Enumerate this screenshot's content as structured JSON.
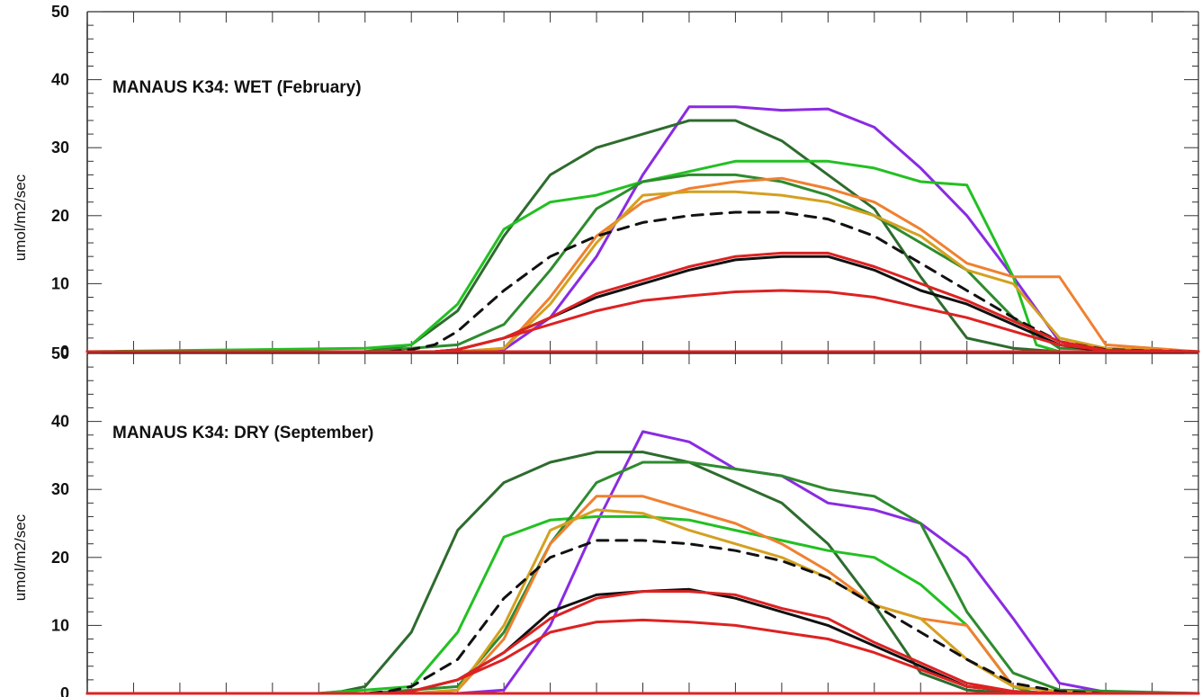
{
  "chart_data": [
    {
      "type": "line",
      "title": "MANAUS K34: WET (February)",
      "ylabel": "umol/m2/sec",
      "xlabel": "",
      "ylim": [
        0,
        50
      ],
      "yticks": [
        0,
        10,
        20,
        30,
        40,
        50
      ],
      "xlim": [
        0,
        24
      ],
      "series": [
        {
          "color": "#8a2be2",
          "dash": false,
          "x": [
            0,
            7,
            8,
            9,
            10,
            11,
            12,
            13,
            14,
            15,
            16,
            17,
            18,
            19,
            20,
            21,
            22,
            23,
            24
          ],
          "y": [
            0,
            0,
            0,
            0.3,
            5,
            14,
            26,
            36,
            36,
            35.5,
            35.7,
            33,
            27,
            20,
            11,
            1.5,
            0,
            0,
            0
          ]
        },
        {
          "color": "#2e6b2e",
          "dash": false,
          "x": [
            0,
            6,
            6.5,
            7,
            8,
            9,
            10,
            11,
            12,
            13,
            14,
            15,
            16,
            17,
            18,
            19,
            20,
            21,
            22,
            23,
            24
          ],
          "y": [
            0,
            0,
            0.5,
            1,
            6,
            17,
            26,
            30,
            32,
            34,
            34,
            31,
            26,
            21,
            11,
            2,
            0.5,
            0,
            0,
            0,
            0
          ]
        },
        {
          "color": "#22c022",
          "dash": false,
          "x": [
            0,
            6,
            7,
            8,
            9,
            10,
            11,
            12,
            13,
            14,
            15,
            16,
            17,
            18,
            19,
            20,
            20.5,
            21,
            24
          ],
          "y": [
            0,
            0.5,
            1,
            7,
            18,
            22,
            23,
            25,
            26.5,
            28,
            28,
            28,
            27,
            25,
            24.5,
            11,
            1,
            0,
            0
          ]
        },
        {
          "color": "#2e8b2e",
          "dash": false,
          "x": [
            0,
            6,
            7,
            8,
            9,
            10,
            11,
            12,
            13,
            14,
            15,
            16,
            17,
            18,
            19,
            20,
            21,
            24
          ],
          "y": [
            0,
            0,
            0.5,
            1,
            4,
            12,
            21,
            25,
            26,
            26,
            25,
            23,
            20,
            16,
            12,
            5,
            0.5,
            0
          ]
        },
        {
          "color": "#f08030",
          "dash": false,
          "x": [
            0,
            7,
            8,
            9,
            10,
            11,
            12,
            13,
            14,
            15,
            16,
            17,
            18,
            19,
            20,
            21,
            22,
            24
          ],
          "y": [
            0,
            0,
            0,
            0.5,
            8,
            17,
            22,
            24,
            25,
            25.5,
            24,
            22,
            18,
            13,
            11,
            11,
            1,
            0
          ]
        },
        {
          "color": "#d4a020",
          "dash": false,
          "x": [
            0,
            7,
            8,
            9,
            10,
            11,
            12,
            13,
            14,
            15,
            16,
            17,
            18,
            19,
            20,
            21,
            22,
            24
          ],
          "y": [
            0,
            0,
            0,
            0.5,
            7,
            16,
            23,
            23.5,
            23.5,
            23,
            22,
            20,
            17,
            12,
            10,
            2,
            0.5,
            0
          ]
        },
        {
          "color": "#111111",
          "dash": true,
          "x": [
            0,
            6.5,
            7,
            7.5,
            8,
            9,
            10,
            11,
            12,
            13,
            14,
            15,
            16,
            17,
            18,
            19,
            20,
            21,
            22,
            24
          ],
          "y": [
            0,
            0,
            0.3,
            1,
            3,
            9,
            14,
            17,
            19,
            20,
            20.5,
            20.5,
            19.5,
            17,
            13,
            9,
            5,
            1.5,
            0.3,
            0
          ]
        },
        {
          "color": "#111111",
          "dash": false,
          "x": [
            0,
            7,
            7.5,
            8,
            9,
            10,
            11,
            12,
            13,
            14,
            15,
            16,
            17,
            18,
            19,
            20,
            21,
            22,
            24
          ],
          "y": [
            0,
            0,
            0,
            0.3,
            2,
            5,
            8,
            10,
            12,
            13.5,
            14,
            14,
            12,
            9,
            7,
            4,
            1,
            0,
            0
          ]
        },
        {
          "color": "#dd2222",
          "dash": false,
          "x": [
            0,
            7,
            7.5,
            8,
            9,
            10,
            11,
            12,
            13,
            14,
            15,
            16,
            17,
            18,
            19,
            20,
            21,
            22,
            24
          ],
          "y": [
            0,
            0,
            0,
            0.3,
            2,
            5,
            8.5,
            10.5,
            12.5,
            14,
            14.5,
            14.5,
            12.5,
            10,
            7.5,
            4.5,
            1.5,
            0.2,
            0
          ]
        },
        {
          "color": "#dd2222",
          "dash": false,
          "x": [
            0,
            7,
            7.5,
            8,
            9,
            10,
            11,
            12,
            13,
            14,
            15,
            16,
            17,
            18,
            19,
            20,
            21,
            22,
            24
          ],
          "y": [
            0,
            0,
            0,
            0.3,
            2,
            4,
            6,
            7.5,
            8.2,
            8.8,
            9,
            8.8,
            8,
            6.5,
            5,
            3,
            1,
            0.2,
            0
          ]
        },
        {
          "color": "#dd2222",
          "dash": false,
          "x": [
            0,
            24
          ],
          "y": [
            0,
            0
          ]
        }
      ]
    },
    {
      "type": "line",
      "title": "MANAUS K34: DRY (September)",
      "ylabel": "umol/m2/sec",
      "xlabel": "",
      "ylim": [
        0,
        50
      ],
      "yticks": [
        0,
        10,
        20,
        30,
        40,
        50
      ],
      "xlim": [
        0,
        24
      ],
      "series": [
        {
          "color": "#8a2be2",
          "dash": false,
          "x": [
            0,
            7,
            8,
            9,
            10,
            11,
            12,
            13,
            14,
            15,
            16,
            17,
            18,
            19,
            20,
            21,
            22,
            24
          ],
          "y": [
            0,
            0,
            0,
            0.5,
            10,
            25,
            38.5,
            37,
            33,
            32,
            28,
            27,
            25,
            20,
            11,
            1.5,
            0.2,
            0
          ]
        },
        {
          "color": "#2e6b2e",
          "dash": false,
          "x": [
            0,
            5,
            5.5,
            6,
            7,
            8,
            9,
            10,
            11,
            12,
            13,
            14,
            15,
            16,
            17,
            18,
            19,
            20,
            21,
            24
          ],
          "y": [
            0,
            0,
            0.3,
            1,
            9,
            24,
            31,
            34,
            35.5,
            35.5,
            34,
            31,
            28,
            22,
            13,
            3,
            0.5,
            0,
            0,
            0
          ]
        },
        {
          "color": "#22c022",
          "dash": false,
          "x": [
            0,
            5,
            6,
            7,
            8,
            9,
            10,
            11,
            12,
            13,
            14,
            15,
            16,
            17,
            18,
            19,
            20,
            20.5,
            21,
            24
          ],
          "y": [
            0,
            0,
            0.5,
            1,
            9,
            23,
            25.5,
            26,
            26,
            25.5,
            24,
            22.5,
            21,
            20,
            16,
            10,
            1,
            0,
            0,
            0
          ]
        },
        {
          "color": "#2e8b2e",
          "dash": false,
          "x": [
            0,
            6,
            7,
            8,
            9,
            10,
            11,
            12,
            13,
            14,
            15,
            16,
            17,
            18,
            19,
            20,
            21,
            24
          ],
          "y": [
            0,
            0,
            0.5,
            1,
            9,
            22,
            31,
            34,
            34,
            33,
            32,
            30,
            29,
            25,
            12,
            3,
            0.5,
            0
          ]
        },
        {
          "color": "#f08030",
          "dash": false,
          "x": [
            0,
            6,
            7,
            8,
            9,
            10,
            11,
            12,
            13,
            14,
            15,
            16,
            17,
            18,
            19,
            20,
            21,
            22,
            24
          ],
          "y": [
            0,
            0,
            0,
            0.5,
            8,
            22,
            29,
            29,
            27,
            25,
            22,
            18,
            13,
            11,
            10,
            1,
            0.3,
            0,
            0
          ]
        },
        {
          "color": "#d4a020",
          "dash": false,
          "x": [
            0,
            6,
            7,
            8,
            9,
            10,
            11,
            12,
            13,
            14,
            15,
            16,
            17,
            18,
            19,
            20,
            21,
            22,
            24
          ],
          "y": [
            0,
            0,
            0,
            0.5,
            10,
            24,
            27,
            26.5,
            24,
            22,
            20,
            17,
            13,
            11,
            5,
            1,
            0.3,
            0,
            0
          ]
        },
        {
          "color": "#111111",
          "dash": true,
          "x": [
            0,
            6,
            6.5,
            7,
            8,
            9,
            10,
            11,
            12,
            13,
            14,
            15,
            16,
            17,
            18,
            19,
            20,
            21,
            22,
            24
          ],
          "y": [
            0,
            0,
            0.3,
            1,
            5,
            14,
            20,
            22.5,
            22.5,
            22,
            21,
            19.5,
            17,
            13,
            9,
            5,
            1.5,
            0.3,
            0,
            0
          ]
        },
        {
          "color": "#111111",
          "dash": false,
          "x": [
            0,
            6.5,
            7,
            8,
            9,
            10,
            11,
            12,
            13,
            14,
            15,
            16,
            17,
            18,
            19,
            20,
            21,
            24
          ],
          "y": [
            0,
            0,
            0.3,
            2,
            6,
            12,
            14.5,
            15,
            15.3,
            14,
            12,
            10,
            7,
            4,
            1,
            0.3,
            0,
            0
          ]
        },
        {
          "color": "#dd2222",
          "dash": false,
          "x": [
            0,
            6.5,
            7,
            8,
            9,
            10,
            11,
            12,
            13,
            14,
            15,
            16,
            17,
            18,
            19,
            20,
            21,
            24
          ],
          "y": [
            0,
            0,
            0.3,
            2,
            6,
            11,
            14,
            15,
            15,
            14.5,
            12.5,
            11,
            7.5,
            4.5,
            1.5,
            0.3,
            0,
            0
          ]
        },
        {
          "color": "#dd2222",
          "dash": false,
          "x": [
            0,
            6.5,
            7,
            8,
            9,
            10,
            11,
            12,
            13,
            14,
            15,
            16,
            17,
            18,
            19,
            20,
            21,
            24
          ],
          "y": [
            0,
            0,
            0.3,
            2,
            5,
            9,
            10.5,
            10.8,
            10.5,
            10,
            9,
            8,
            6,
            3.5,
            1,
            0.3,
            0,
            0
          ]
        },
        {
          "color": "#dd2222",
          "dash": false,
          "x": [
            0,
            24
          ],
          "y": [
            0,
            0
          ]
        }
      ]
    }
  ]
}
